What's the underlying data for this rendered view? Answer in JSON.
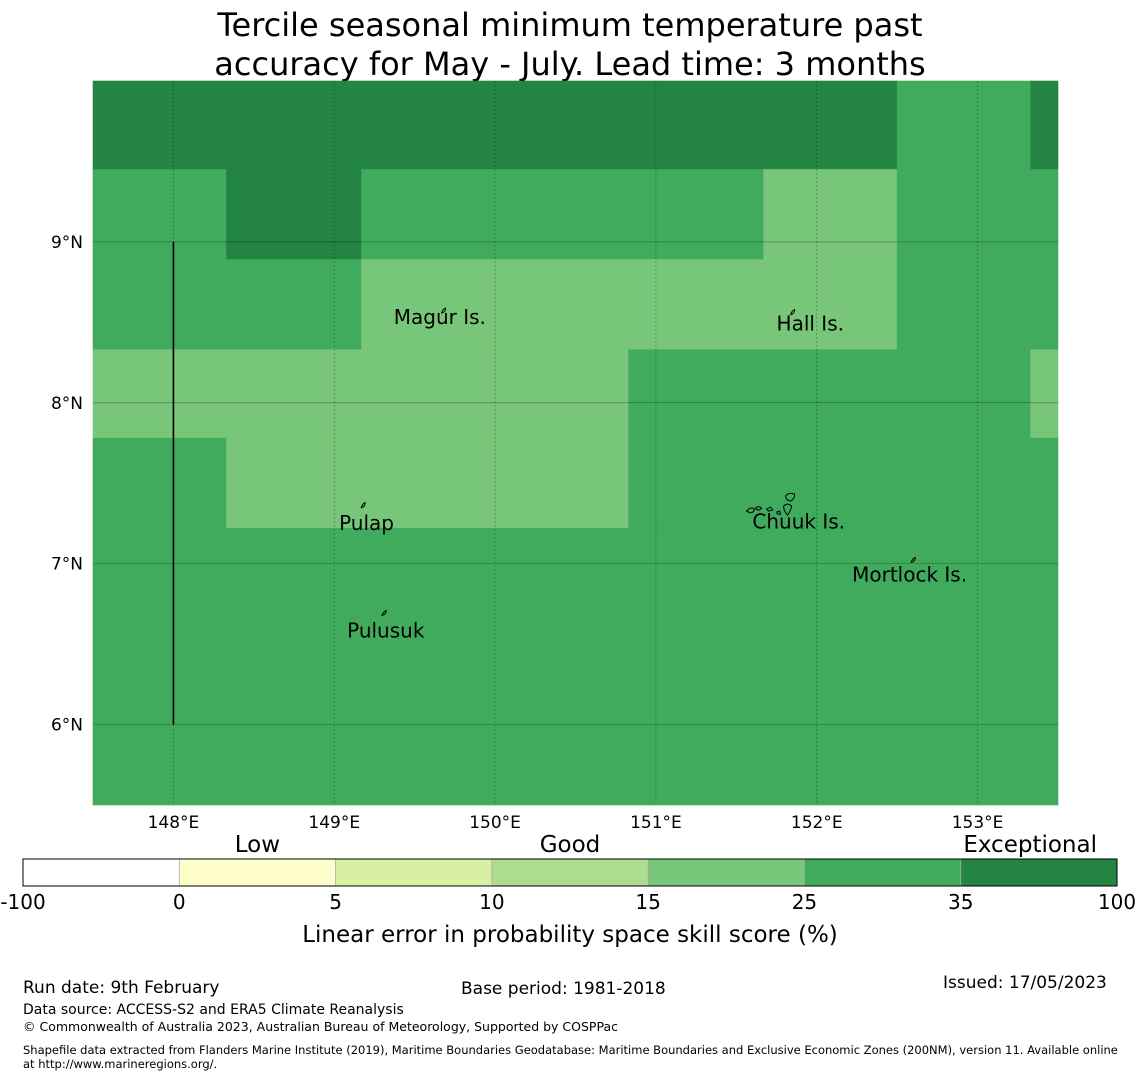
{
  "title": {
    "line1": "Tercile seasonal minimum temperature past",
    "line2": "accuracy for May - July. Lead time: 3 months"
  },
  "map": {
    "lon_range": [
      147.5,
      153.5
    ],
    "lat_range": [
      5.5,
      10.0
    ],
    "lon_ticks": [
      {
        "value": 148,
        "label": "148°E"
      },
      {
        "value": 149,
        "label": "149°E"
      },
      {
        "value": 150,
        "label": "150°E"
      },
      {
        "value": 151,
        "label": "151°E"
      },
      {
        "value": 152,
        "label": "152°E"
      },
      {
        "value": 153,
        "label": "153°E"
      }
    ],
    "lat_ticks": [
      {
        "value": 9,
        "label": "9°N"
      },
      {
        "value": 8,
        "label": "8°N"
      },
      {
        "value": 7,
        "label": "7°N"
      },
      {
        "value": 6,
        "label": "6°N"
      }
    ],
    "grid": true,
    "cells": [
      {
        "lon": [
          147.5,
          152.5
        ],
        "lat": [
          9.45,
          10.0
        ],
        "band": 6
      },
      {
        "lon": [
          152.5,
          153.33
        ],
        "lat": [
          9.45,
          10.0
        ],
        "band": 5
      },
      {
        "lon": [
          153.33,
          153.5
        ],
        "lat": [
          9.45,
          10.0
        ],
        "band": 6
      },
      {
        "lon": [
          147.5,
          148.33
        ],
        "lat": [
          8.89,
          9.45
        ],
        "band": 5
      },
      {
        "lon": [
          148.33,
          149.17
        ],
        "lat": [
          8.89,
          9.45
        ],
        "band": 6
      },
      {
        "lon": [
          149.17,
          151.67
        ],
        "lat": [
          8.89,
          9.45
        ],
        "band": 5
      },
      {
        "lon": [
          151.67,
          152.5
        ],
        "lat": [
          8.89,
          9.45
        ],
        "band": 4
      },
      {
        "lon": [
          152.5,
          153.5
        ],
        "lat": [
          8.89,
          9.45
        ],
        "band": 5
      },
      {
        "lon": [
          147.5,
          149.17
        ],
        "lat": [
          8.33,
          8.89
        ],
        "band": 5
      },
      {
        "lon": [
          149.17,
          152.5
        ],
        "lat": [
          8.33,
          8.89
        ],
        "band": 4
      },
      {
        "lon": [
          152.5,
          153.5
        ],
        "lat": [
          8.33,
          8.89
        ],
        "band": 5
      },
      {
        "lon": [
          147.5,
          150.83
        ],
        "lat": [
          7.78,
          8.33
        ],
        "band": 4
      },
      {
        "lon": [
          150.83,
          153.33
        ],
        "lat": [
          7.78,
          8.33
        ],
        "band": 5
      },
      {
        "lon": [
          153.33,
          153.5
        ],
        "lat": [
          7.78,
          8.33
        ],
        "band": 4
      },
      {
        "lon": [
          147.5,
          148.33
        ],
        "lat": [
          7.22,
          7.78
        ],
        "band": 5
      },
      {
        "lon": [
          148.33,
          150.83
        ],
        "lat": [
          7.22,
          7.78
        ],
        "band": 4
      },
      {
        "lon": [
          150.83,
          153.5
        ],
        "lat": [
          7.22,
          7.78
        ],
        "band": 5
      },
      {
        "lon": [
          147.5,
          153.5
        ],
        "lat": [
          5.5,
          7.22
        ],
        "band": 5
      }
    ],
    "boundary_line": {
      "lon": 148.0,
      "lat": [
        6.0,
        9.0
      ]
    },
    "places": [
      {
        "name": "Magur Is.",
        "lon": 149.68,
        "lat": 8.57,
        "label_lon": 149.37,
        "label_lat": 8.49
      },
      {
        "name": "Hall Is.",
        "lon": 151.85,
        "lat": 8.56,
        "label_lon": 151.75,
        "label_lat": 8.45
      },
      {
        "name": "Pulap",
        "lon": 149.18,
        "lat": 7.36,
        "label_lon": 149.03,
        "label_lat": 7.21
      },
      {
        "name": "Chuuk Is.",
        "lon": 151.85,
        "lat": 7.42,
        "label_lon": 151.6,
        "label_lat": 7.22
      },
      {
        "name": "Mortlock Is.",
        "lon": 152.6,
        "lat": 7.02,
        "label_lon": 152.22,
        "label_lat": 6.89
      },
      {
        "name": "Pulusuk",
        "lon": 149.31,
        "lat": 6.69,
        "label_lon": 149.08,
        "label_lat": 6.54
      }
    ]
  },
  "colorbar": {
    "categories": [
      {
        "label": "Low",
        "center_band": 1
      },
      {
        "label": "Good",
        "center_band": 3
      },
      {
        "label": "Exceptional",
        "center_band": 6
      }
    ],
    "ticks": [
      "-100",
      "0",
      "5",
      "10",
      "15",
      "25",
      "35",
      "100"
    ],
    "colors": [
      "#ffffff",
      "#ffffcc",
      "#d9f0a3",
      "#addd8e",
      "#78c679",
      "#41ab5d",
      "#238443"
    ],
    "title": "Linear error in probability space skill score (%)"
  },
  "footer": {
    "run_date": "Run date: 9th February",
    "base_period": "Base period: 1981-2018",
    "issued": "Issued: 17/05/2023",
    "data_source": "Data source: ACCESS-S2 and ERA5 Climate Reanalysis",
    "copyright": "© Commonwealth of Australia 2023, Australian Bureau of Meteorology, Supported by COSPPac",
    "shapefile": "Shapefile data extracted from Flanders Marine Institute (2019), Maritime Boundaries Geodatabase: Maritime Boundaries and Exclusive Economic Zones (200NM), version 11. Available online at http://www.marineregions.org/."
  }
}
